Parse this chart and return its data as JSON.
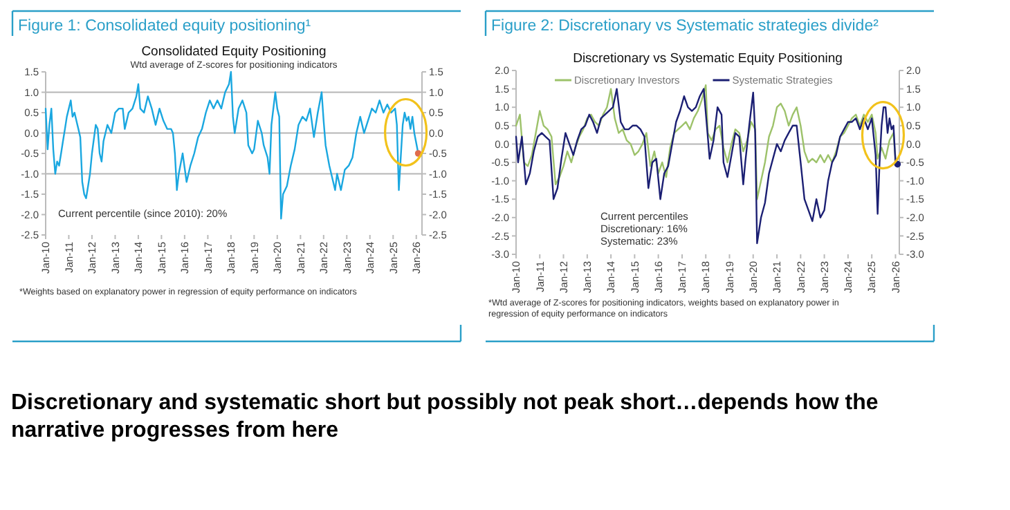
{
  "chart_data": [
    {
      "type": "line",
      "title": "Figure 1: Consolidated equity positioning¹",
      "subtitle": "Consolidated Equity Positioning",
      "annotations": [
        "Wtd average of Z-scores for positioning indicators",
        "Current percentile (since 2010): 20%",
        "*Weights based on explanatory power in regression of equity performance on indicators"
      ],
      "series": [
        {
          "color": "#1aa7e0",
          "x": [
            "2010-01",
            "2010-02",
            "2010-03",
            "2010-04",
            "2010-05",
            "2010-06",
            "2010-07",
            "2010-08",
            "2010-09",
            "2010-10",
            "2010-11",
            "2010-12",
            "2011-01",
            "2011-02",
            "2011-03",
            "2011-04",
            "2011-05",
            "2011-06",
            "2011-07",
            "2011-08",
            "2011-09",
            "2011-10",
            "2011-11",
            "2011-12",
            "2012-01",
            "2012-03",
            "2012-04",
            "2012-05",
            "2012-06",
            "2012-07",
            "2012-09",
            "2012-11",
            "2013-01",
            "2013-03",
            "2013-05",
            "2013-06",
            "2013-08",
            "2013-10",
            "2013-12",
            "2014-01",
            "2014-02",
            "2014-04",
            "2014-06",
            "2014-08",
            "2014-10",
            "2014-12",
            "2015-02",
            "2015-04",
            "2015-06",
            "2015-07",
            "2015-08",
            "2015-09",
            "2015-10",
            "2015-12",
            "2016-02",
            "2016-04",
            "2016-06",
            "2016-08",
            "2016-10",
            "2016-12",
            "2017-02",
            "2017-04",
            "2017-06",
            "2017-08",
            "2017-10",
            "2017-12",
            "2018-01",
            "2018-02",
            "2018-03",
            "2018-05",
            "2018-07",
            "2018-09",
            "2018-10",
            "2018-12",
            "2019-01",
            "2019-03",
            "2019-05",
            "2019-06",
            "2019-08",
            "2019-09",
            "2019-10",
            "2019-12",
            "2020-01",
            "2020-02",
            "2020-03",
            "2020-04",
            "2020-06",
            "2020-08",
            "2020-10",
            "2020-12",
            "2021-02",
            "2021-04",
            "2021-06",
            "2021-08",
            "2021-10",
            "2021-12",
            "2022-01",
            "2022-02",
            "2022-04",
            "2022-06",
            "2022-07",
            "2022-08",
            "2022-10",
            "2022-12",
            "2023-02",
            "2023-04",
            "2023-06",
            "2023-08",
            "2023-10",
            "2023-12",
            "2024-02",
            "2024-04",
            "2024-06",
            "2024-08",
            "2024-10",
            "2024-12",
            "2025-02",
            "2025-03",
            "2025-04",
            "2025-05",
            "2025-06",
            "2025-07",
            "2025-08",
            "2025-09",
            "2025-10",
            "2025-11",
            "2025-12",
            "2026-02"
          ],
          "values": [
            0.6,
            -0.4,
            0.2,
            0.6,
            -0.4,
            -1.0,
            -0.7,
            -0.8,
            -0.5,
            -0.2,
            0.1,
            0.4,
            0.6,
            0.8,
            0.4,
            0.5,
            0.3,
            0.1,
            -0.1,
            -1.2,
            -1.5,
            -1.6,
            -1.3,
            -1.0,
            -0.5,
            0.2,
            0.1,
            -0.5,
            -0.7,
            -0.2,
            0.2,
            0.0,
            0.5,
            0.6,
            0.6,
            0.1,
            0.5,
            0.6,
            0.9,
            1.2,
            0.6,
            0.5,
            0.9,
            0.6,
            0.2,
            0.6,
            0.3,
            0.1,
            0.1,
            0.0,
            -0.5,
            -1.4,
            -1.0,
            -0.5,
            -1.2,
            -0.8,
            -0.5,
            -0.1,
            0.1,
            0.5,
            0.8,
            0.6,
            0.8,
            0.6,
            1.0,
            1.2,
            1.5,
            0.4,
            0.0,
            0.6,
            0.8,
            0.5,
            -0.3,
            -0.5,
            -0.4,
            0.3,
            0.0,
            -0.3,
            -0.6,
            -1.0,
            0.2,
            1.0,
            0.6,
            0.4,
            -2.1,
            -1.5,
            -1.3,
            -0.8,
            -0.4,
            0.2,
            0.4,
            0.3,
            0.6,
            -0.1,
            0.5,
            1.0,
            0.3,
            -0.3,
            -0.8,
            -1.2,
            -1.4,
            -1.0,
            -1.4,
            -0.9,
            -0.8,
            -0.6,
            0.0,
            0.4,
            0.0,
            0.3,
            0.6,
            0.5,
            0.8,
            0.5,
            0.7,
            0.5,
            0.6,
            0.2,
            -1.4,
            -0.6,
            0.2,
            0.5,
            0.3,
            0.4,
            0.1,
            0.4,
            0.0,
            -0.5
          ]
        },
        {
          "type": "scatter",
          "marker": "circle",
          "color": "#e06c4c",
          "x": [
            "2026-02"
          ],
          "values": [
            -0.5
          ]
        }
      ],
      "xlim": [
        "2010-01",
        "2026-04"
      ],
      "xticks": [
        {
          "value": "2010-01",
          "label": "Jan-10"
        },
        {
          "value": "2011-01",
          "label": "Jan-11"
        },
        {
          "value": "2012-01",
          "label": "Jan-12"
        },
        {
          "value": "2013-01",
          "label": "Jan-13"
        },
        {
          "value": "2014-01",
          "label": "Jan-14"
        },
        {
          "value": "2015-01",
          "label": "Jan-15"
        },
        {
          "value": "2016-01",
          "label": "Jan-16"
        },
        {
          "value": "2017-01",
          "label": "Jan-17"
        },
        {
          "value": "2018-01",
          "label": "Jan-18"
        },
        {
          "value": "2019-01",
          "label": "Jan-19"
        },
        {
          "value": "2020-01",
          "label": "Jan-20"
        },
        {
          "value": "2021-01",
          "label": "Jan-21"
        },
        {
          "value": "2022-01",
          "label": "Jan-22"
        },
        {
          "value": "2023-01",
          "label": "Jan-23"
        },
        {
          "value": "2024-01",
          "label": "Jan-24"
        },
        {
          "value": "2025-01",
          "label": "Jan-25"
        },
        {
          "value": "2026-01",
          "label": "Jan-26"
        }
      ],
      "ylim": [
        -2.5,
        1.5
      ],
      "yticks": [
        {
          "value": 1.5,
          "label": "1.5"
        },
        {
          "value": 1,
          "label": "1.0"
        },
        {
          "value": 0.5,
          "label": "0.5"
        },
        {
          "value": 0,
          "label": "0.0"
        },
        {
          "value": -0.5,
          "label": "-0.5"
        },
        {
          "value": -1,
          "label": "-1.0"
        },
        {
          "value": -1.5,
          "label": "-1.5"
        },
        {
          "value": -2,
          "label": "-2.0"
        },
        {
          "value": -2.5,
          "label": "-2.5"
        }
      ],
      "y2lim": [
        -2.5,
        1.5
      ],
      "y2ticks": [
        {
          "value": 1.5,
          "label": "1.5"
        },
        {
          "value": 1,
          "label": "1.0"
        },
        {
          "value": 0.5,
          "label": "0.5"
        },
        {
          "value": 0,
          "label": "0.0"
        },
        {
          "value": -0.5,
          "label": "-0.5"
        },
        {
          "value": -1,
          "label": "-1.0"
        },
        {
          "value": -1.5,
          "label": "-1.5"
        },
        {
          "value": -2,
          "label": "-2.0"
        },
        {
          "value": -2.5,
          "label": "-2.5"
        }
      ],
      "ref_lines": [
        {
          "axis": "y",
          "value": 1,
          "color": "#b5b5b5"
        },
        {
          "axis": "y",
          "value": 0,
          "color": "#b5b5b5"
        },
        {
          "axis": "y",
          "value": -1,
          "color": "#b5b5b5"
        }
      ],
      "legend": false
    },
    {
      "type": "line",
      "title": "Figure 2: Discretionary vs Systematic strategies divide²",
      "subtitle": "Discretionary  vs Systematic Equity Positioning",
      "annotations": [
        "Current percentiles",
        "Discretionary: 16%",
        "Systematic: 23%",
        "*Wtd average of Z-scores for positioning indicators, weights based on explanatory power in regression of equity performance on indicators"
      ],
      "series": [
        {
          "name": "Discretionary Investors",
          "color": "#9dc26a",
          "x": [
            "2010-01",
            "2010-03",
            "2010-05",
            "2010-07",
            "2010-09",
            "2010-11",
            "2011-01",
            "2011-03",
            "2011-05",
            "2011-07",
            "2011-09",
            "2011-11",
            "2012-01",
            "2012-03",
            "2012-05",
            "2012-07",
            "2012-09",
            "2012-11",
            "2013-01",
            "2013-03",
            "2013-05",
            "2013-07",
            "2013-09",
            "2013-11",
            "2014-01",
            "2014-03",
            "2014-05",
            "2014-07",
            "2014-09",
            "2014-11",
            "2015-01",
            "2015-03",
            "2015-05",
            "2015-07",
            "2015-09",
            "2015-11",
            "2016-01",
            "2016-03",
            "2016-05",
            "2016-07",
            "2016-09",
            "2016-11",
            "2017-01",
            "2017-03",
            "2017-05",
            "2017-07",
            "2017-09",
            "2017-11",
            "2018-01",
            "2018-02",
            "2018-04",
            "2018-06",
            "2018-08",
            "2018-10",
            "2018-12",
            "2019-02",
            "2019-04",
            "2019-06",
            "2019-08",
            "2019-10",
            "2019-12",
            "2020-02",
            "2020-03",
            "2020-05",
            "2020-07",
            "2020-09",
            "2020-11",
            "2021-01",
            "2021-03",
            "2021-05",
            "2021-07",
            "2021-09",
            "2021-11",
            "2022-01",
            "2022-03",
            "2022-05",
            "2022-07",
            "2022-09",
            "2022-11",
            "2023-01",
            "2023-03",
            "2023-05",
            "2023-07",
            "2023-09",
            "2023-11",
            "2024-01",
            "2024-03",
            "2024-05",
            "2024-07",
            "2024-09",
            "2024-11",
            "2025-01",
            "2025-03",
            "2025-04",
            "2025-06",
            "2025-08",
            "2025-10",
            "2025-12",
            "2026-01"
          ],
          "values": [
            0.5,
            0.8,
            -0.5,
            -0.6,
            -0.3,
            0.3,
            0.9,
            0.5,
            0.4,
            0.2,
            -1.1,
            -0.9,
            -0.6,
            -0.2,
            -0.5,
            -0.1,
            0.2,
            0.4,
            0.7,
            0.8,
            0.6,
            0.5,
            0.8,
            1.0,
            1.5,
            0.7,
            0.3,
            0.4,
            0.1,
            0.0,
            -0.3,
            -0.2,
            0.0,
            0.3,
            -0.6,
            -0.2,
            -0.8,
            -0.5,
            -0.9,
            -0.1,
            0.3,
            0.4,
            0.5,
            0.6,
            0.4,
            0.7,
            0.9,
            1.2,
            1.6,
            0.3,
            0.1,
            0.4,
            0.5,
            -0.1,
            -0.5,
            0.0,
            0.4,
            0.3,
            -0.2,
            0.1,
            0.6,
            0.4,
            -1.5,
            -1.0,
            -0.5,
            0.2,
            0.5,
            1.0,
            1.1,
            0.9,
            0.5,
            0.8,
            1.0,
            0.5,
            -0.2,
            -0.5,
            -0.4,
            -0.5,
            -0.3,
            -0.5,
            -0.3,
            -0.5,
            -0.2,
            0.2,
            0.3,
            0.5,
            0.7,
            0.8,
            0.5,
            0.8,
            0.6,
            0.8,
            0.3,
            -0.4,
            -0.1,
            -0.4,
            0.1,
            0.3,
            -0.4
          ]
        },
        {
          "name": "Systematic Strategies",
          "color": "#1b1f73",
          "x": [
            "2010-01",
            "2010-02",
            "2010-04",
            "2010-06",
            "2010-08",
            "2010-10",
            "2010-12",
            "2011-02",
            "2011-04",
            "2011-06",
            "2011-08",
            "2011-10",
            "2011-12",
            "2012-02",
            "2012-04",
            "2012-06",
            "2012-08",
            "2012-10",
            "2012-12",
            "2013-02",
            "2013-04",
            "2013-06",
            "2013-08",
            "2013-10",
            "2013-12",
            "2014-02",
            "2014-04",
            "2014-06",
            "2014-08",
            "2014-10",
            "2014-12",
            "2015-02",
            "2015-04",
            "2015-06",
            "2015-08",
            "2015-10",
            "2015-12",
            "2016-02",
            "2016-04",
            "2016-06",
            "2016-08",
            "2016-10",
            "2016-12",
            "2017-02",
            "2017-04",
            "2017-06",
            "2017-08",
            "2017-10",
            "2017-12",
            "2018-02",
            "2018-03",
            "2018-05",
            "2018-07",
            "2018-09",
            "2018-10",
            "2018-12",
            "2019-02",
            "2019-04",
            "2019-06",
            "2019-08",
            "2019-09",
            "2019-11",
            "2020-01",
            "2020-02",
            "2020-03",
            "2020-05",
            "2020-07",
            "2020-09",
            "2020-11",
            "2021-01",
            "2021-03",
            "2021-05",
            "2021-07",
            "2021-09",
            "2021-11",
            "2022-01",
            "2022-03",
            "2022-05",
            "2022-07",
            "2022-09",
            "2022-11",
            "2023-01",
            "2023-03",
            "2023-05",
            "2023-07",
            "2023-09",
            "2023-11",
            "2024-01",
            "2024-03",
            "2024-05",
            "2024-07",
            "2024-09",
            "2024-11",
            "2025-01",
            "2025-03",
            "2025-04",
            "2025-05",
            "2025-06",
            "2025-07",
            "2025-08",
            "2025-09",
            "2025-10",
            "2025-11",
            "2025-12",
            "2026-01",
            "2026-02"
          ],
          "values": [
            0.2,
            -0.5,
            0.2,
            -1.1,
            -0.8,
            -0.2,
            0.2,
            0.3,
            0.2,
            0.1,
            -1.5,
            -1.2,
            -0.4,
            0.3,
            0.0,
            -0.3,
            0.1,
            0.4,
            0.5,
            0.8,
            0.6,
            0.3,
            0.7,
            0.8,
            0.9,
            1.0,
            1.5,
            0.6,
            0.4,
            0.4,
            0.5,
            0.5,
            0.4,
            0.2,
            -1.2,
            -0.5,
            -0.4,
            -1.5,
            -0.8,
            -0.6,
            0.0,
            0.6,
            0.9,
            1.3,
            1.0,
            0.9,
            1.0,
            1.3,
            1.5,
            0.2,
            -0.4,
            0.1,
            1.0,
            0.8,
            -0.5,
            -0.9,
            -0.3,
            0.3,
            0.2,
            -1.1,
            -0.5,
            0.5,
            1.4,
            0.3,
            -2.7,
            -2.0,
            -1.6,
            -0.8,
            -0.4,
            0.0,
            -0.2,
            0.1,
            0.3,
            0.5,
            0.5,
            -0.5,
            -1.5,
            -1.8,
            -2.1,
            -1.5,
            -2.0,
            -1.8,
            -1.0,
            -0.5,
            -0.3,
            0.2,
            0.4,
            0.6,
            0.6,
            0.7,
            0.4,
            0.7,
            0.4,
            0.7,
            -0.3,
            -1.9,
            -0.5,
            0.5,
            1.0,
            1.0,
            0.3,
            0.7,
            0.4,
            0.5,
            -0.5,
            -0.55
          ]
        },
        {
          "type": "scatter",
          "marker": "circle",
          "color": "#1b1f73",
          "x": [
            "2026-02"
          ],
          "values": [
            -0.55
          ]
        }
      ],
      "xlim": [
        "2010-01",
        "2026-03"
      ],
      "xticks": [
        {
          "value": "2010-01",
          "label": "Jan-10"
        },
        {
          "value": "2011-01",
          "label": "Jan-11"
        },
        {
          "value": "2012-01",
          "label": "Jan-12"
        },
        {
          "value": "2013-01",
          "label": "Jan-13"
        },
        {
          "value": "2014-01",
          "label": "Jan-14"
        },
        {
          "value": "2015-01",
          "label": "Jan-15"
        },
        {
          "value": "2016-01",
          "label": "Jan-16"
        },
        {
          "value": "2017-01",
          "label": "Jan-17"
        },
        {
          "value": "2018-01",
          "label": "Jan-18"
        },
        {
          "value": "2019-01",
          "label": "Jan-19"
        },
        {
          "value": "2020-01",
          "label": "Jan-20"
        },
        {
          "value": "2021-01",
          "label": "Jan-21"
        },
        {
          "value": "2022-01",
          "label": "Jan-22"
        },
        {
          "value": "2023-01",
          "label": "Jan-23"
        },
        {
          "value": "2024-01",
          "label": "Jan-24"
        },
        {
          "value": "2025-01",
          "label": "Jan-25"
        },
        {
          "value": "2026-01",
          "label": "Jan-26"
        }
      ],
      "ylim": [
        -3,
        2
      ],
      "yticks": [
        {
          "value": 2,
          "label": "2.0"
        },
        {
          "value": 1.5,
          "label": "1.5"
        },
        {
          "value": 1,
          "label": "1.0"
        },
        {
          "value": 0.5,
          "label": "0.5"
        },
        {
          "value": 0,
          "label": "0.0"
        },
        {
          "value": -0.5,
          "label": "-0.5"
        },
        {
          "value": -1,
          "label": "-1.0"
        },
        {
          "value": -1.5,
          "label": "-1.5"
        },
        {
          "value": -2,
          "label": "-2.0"
        },
        {
          "value": -2.5,
          "label": "-2.5"
        },
        {
          "value": -3,
          "label": "-3.0"
        }
      ],
      "y2lim": [
        -3,
        2
      ],
      "y2ticks": [
        {
          "value": 2,
          "label": "2.0"
        },
        {
          "value": 1.5,
          "label": "1.5"
        },
        {
          "value": 1,
          "label": "1.0"
        },
        {
          "value": 0.5,
          "label": "0.5"
        },
        {
          "value": 0,
          "label": "0.0"
        },
        {
          "value": -0.5,
          "label": "-0.5"
        },
        {
          "value": -1,
          "label": "-1.0"
        },
        {
          "value": -1.5,
          "label": "-1.5"
        },
        {
          "value": -2,
          "label": "-2.0"
        },
        {
          "value": -2.5,
          "label": "-2.5"
        },
        {
          "value": -3,
          "label": "-3.0"
        }
      ],
      "ref_lines": [
        {
          "axis": "y",
          "value": 0,
          "color": "#b5b5b5"
        }
      ],
      "legend": "top"
    },
    {
      "type": "other",
      "title": "Discretionary and systematic short but possibly not peak short…depends how the narrative progresses from here"
    }
  ]
}
